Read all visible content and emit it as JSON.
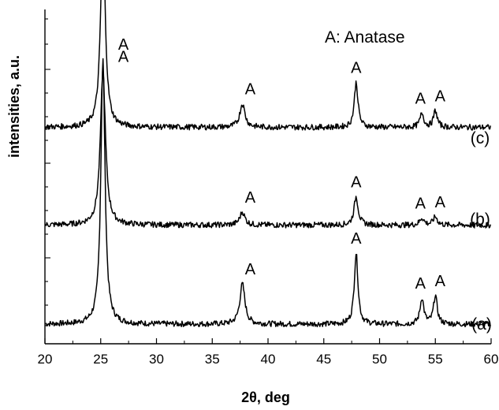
{
  "chart_data": {
    "type": "line",
    "title": "",
    "xlabel": "2θ, deg",
    "ylabel": "intensities, a.u.",
    "xlim": [
      20,
      60
    ],
    "xticks": [
      20,
      25,
      30,
      35,
      40,
      45,
      50,
      55,
      60
    ],
    "y_tick_labels_shown": false,
    "legend_note": "A: Anatase",
    "grid": false,
    "peak_marker": "A",
    "series": [
      {
        "label": "(a)",
        "baseline": 0.36,
        "noise": 0.12,
        "peaks": [
          {
            "x": 25.2,
            "height": 11.2,
            "width": 0.45,
            "marker": "A"
          },
          {
            "x": 37.7,
            "height": 1.7,
            "width": 0.55,
            "marker": "A"
          },
          {
            "x": 47.9,
            "height": 3.0,
            "width": 0.4,
            "marker": "A"
          },
          {
            "x": 53.8,
            "height": 1.1,
            "width": 0.4,
            "marker": "A"
          },
          {
            "x": 55.0,
            "height": 1.2,
            "width": 0.4,
            "marker": "A"
          }
        ]
      },
      {
        "label": "(b)",
        "baseline": 0.35,
        "noise": 0.12,
        "peaks": [
          {
            "x": 25.2,
            "height": 6.5,
            "width": 0.55,
            "marker": "A"
          },
          {
            "x": 37.7,
            "height": 0.55,
            "width": 0.55,
            "marker": "A"
          },
          {
            "x": 47.9,
            "height": 1.2,
            "width": 0.45,
            "marker": "A"
          },
          {
            "x": 53.8,
            "height": 0.3,
            "width": 0.45,
            "marker": "A"
          },
          {
            "x": 55.0,
            "height": 0.35,
            "width": 0.45,
            "marker": "A"
          }
        ]
      },
      {
        "label": "(c)",
        "baseline": 0.35,
        "noise": 0.12,
        "peaks": [
          {
            "x": 25.2,
            "height": 8.3,
            "width": 0.5,
            "marker": "A"
          },
          {
            "x": 37.7,
            "height": 1.0,
            "width": 0.55,
            "marker": "A"
          },
          {
            "x": 47.9,
            "height": 1.9,
            "width": 0.4,
            "marker": "A"
          },
          {
            "x": 53.8,
            "height": 0.6,
            "width": 0.4,
            "marker": "A"
          },
          {
            "x": 55.0,
            "height": 0.7,
            "width": 0.4,
            "marker": "A"
          }
        ]
      }
    ],
    "trace_color": "#000000"
  }
}
